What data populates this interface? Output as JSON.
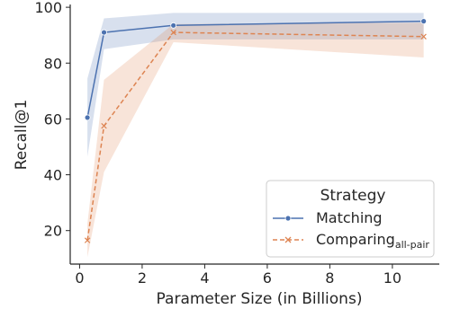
{
  "chart_data": {
    "type": "line",
    "xlabel": "Parameter Size (in Billions)",
    "ylabel": "Recall@1",
    "xlim": [
      -0.3,
      11.5
    ],
    "ylim": [
      8,
      101
    ],
    "xticks": [
      0,
      2,
      4,
      6,
      8,
      10
    ],
    "yticks": [
      20,
      40,
      60,
      80,
      100
    ],
    "x_tick_labels": [
      "0",
      "2",
      "4",
      "6",
      "8",
      "10"
    ],
    "y_tick_labels": [
      "20",
      "40",
      "60",
      "80",
      "100"
    ],
    "grid": false,
    "legend": {
      "title": "Strategy",
      "placement": "bottom-right"
    },
    "series": [
      {
        "name": "Matching",
        "color": "#4c72b0",
        "marker": "circle",
        "linestyle": "solid",
        "x": [
          0.25,
          0.78,
          3.0,
          11.0
        ],
        "y": [
          60.5,
          91.0,
          93.5,
          95.0
        ],
        "ci_lower": [
          46.5,
          85.0,
          88.5,
          88.5
        ],
        "ci_upper": [
          74.5,
          96.0,
          98.0,
          98.0
        ]
      },
      {
        "name": "Comparing",
        "name_subscript": "all-pair",
        "color": "#dd8452",
        "marker": "x",
        "linestyle": "dashed",
        "x": [
          0.25,
          0.78,
          3.0,
          11.0
        ],
        "y": [
          16.5,
          57.5,
          91.0,
          89.5
        ],
        "ci_lower": [
          10.5,
          41.0,
          87.5,
          82.0
        ],
        "ci_upper": [
          22.5,
          74.0,
          94.0,
          94.5
        ]
      }
    ]
  }
}
